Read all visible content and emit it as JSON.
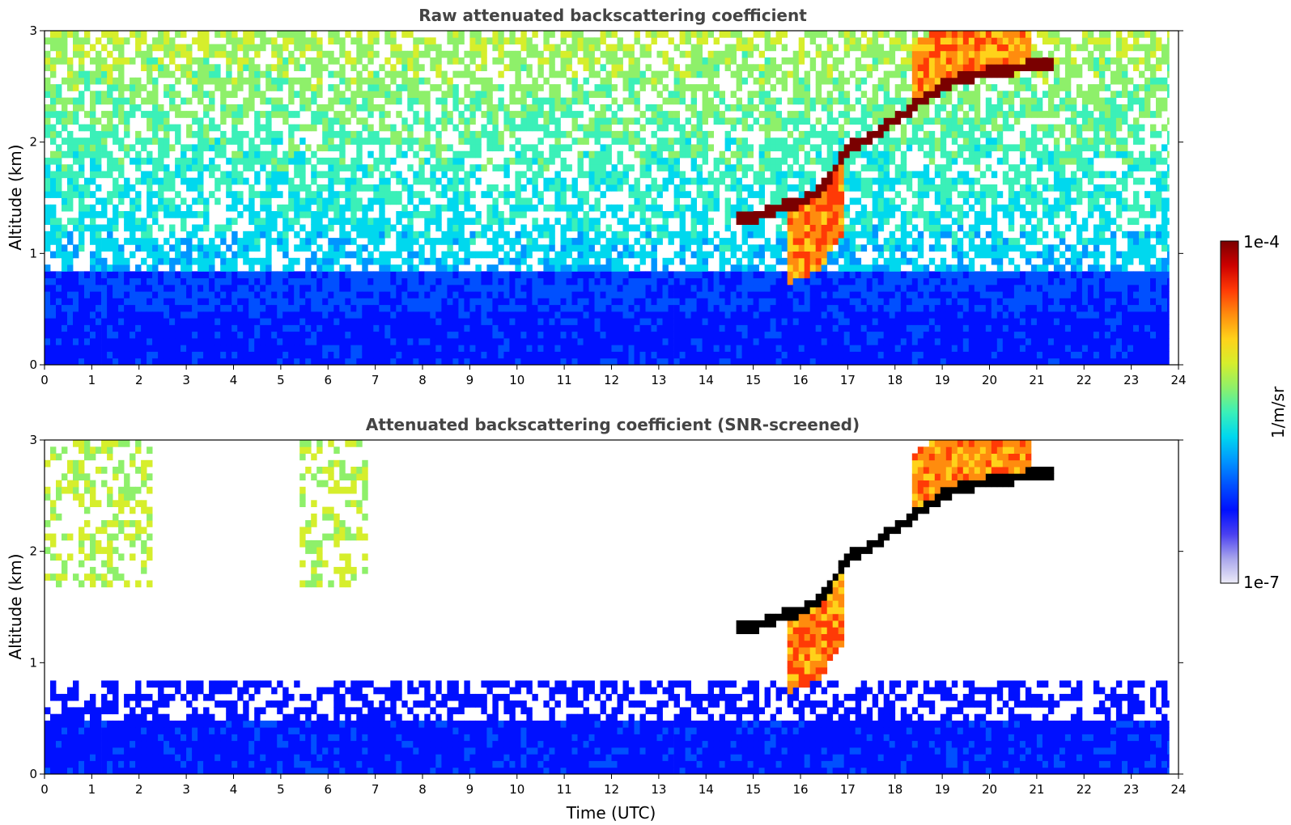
{
  "colorbar": {
    "max_label": "1e-4",
    "min_label": "1e-7",
    "unit_label": "1/m/sr",
    "colors": [
      "#ecebf7",
      "#a9a6ec",
      "#4a40f0",
      "#0010ff",
      "#0050ff",
      "#0095ff",
      "#00d8ee",
      "#3bf0b8",
      "#8ef06a",
      "#d6ee2c",
      "#ffd21a",
      "#ff8c0e",
      "#ff3a06",
      "#cc0000",
      "#7a0000"
    ]
  },
  "chart_data": [
    {
      "type": "heatmap",
      "title": "Raw attenuated backscattering coefficient",
      "xlabel": "",
      "ylabel": "Altitude (km)",
      "xlim": [
        0,
        24
      ],
      "ylim": [
        0,
        3
      ],
      "x_ticks": [
        "0",
        "1",
        "2",
        "3",
        "4",
        "5",
        "6",
        "7",
        "8",
        "9",
        "10",
        "11",
        "12",
        "13",
        "14",
        "15",
        "16",
        "17",
        "18",
        "19",
        "20",
        "21",
        "22",
        "23",
        "24"
      ],
      "y_ticks": [
        "0",
        "1",
        "2",
        "3"
      ],
      "data_end_time": 23.8,
      "cloud_layer": [
        [
          14.6,
          1.3
        ],
        [
          15.0,
          1.33
        ],
        [
          15.5,
          1.4
        ],
        [
          16.0,
          1.47
        ],
        [
          16.4,
          1.55
        ],
        [
          16.7,
          1.75
        ],
        [
          17.0,
          1.95
        ],
        [
          17.5,
          2.05
        ],
        [
          18.0,
          2.2
        ],
        [
          18.5,
          2.35
        ],
        [
          19.0,
          2.5
        ],
        [
          19.5,
          2.58
        ],
        [
          20.0,
          2.63
        ],
        [
          20.5,
          2.66
        ],
        [
          21.0,
          2.7
        ],
        [
          21.3,
          2.72
        ]
      ]
    },
    {
      "type": "heatmap",
      "title": "Attenuated backscattering coefficient (SNR-screened)",
      "xlabel": "Time (UTC)",
      "ylabel": "Altitude (km)",
      "xlim": [
        0,
        24
      ],
      "ylim": [
        0,
        3
      ],
      "x_ticks": [
        "0",
        "1",
        "2",
        "3",
        "4",
        "5",
        "6",
        "7",
        "8",
        "9",
        "10",
        "11",
        "12",
        "13",
        "14",
        "15",
        "16",
        "17",
        "18",
        "19",
        "20",
        "21",
        "22",
        "23",
        "24"
      ],
      "y_ticks": [
        "0",
        "1",
        "2",
        "3"
      ],
      "data_end_time": 23.8,
      "cloud_layer": [
        [
          14.6,
          1.3
        ],
        [
          15.0,
          1.33
        ],
        [
          15.5,
          1.4
        ],
        [
          16.0,
          1.47
        ],
        [
          16.4,
          1.55
        ],
        [
          16.7,
          1.75
        ],
        [
          17.0,
          1.95
        ],
        [
          17.5,
          2.05
        ],
        [
          18.0,
          2.2
        ],
        [
          18.5,
          2.35
        ],
        [
          19.0,
          2.5
        ],
        [
          19.5,
          2.58
        ],
        [
          20.0,
          2.63
        ],
        [
          20.5,
          2.66
        ],
        [
          21.0,
          2.7
        ],
        [
          21.3,
          2.72
        ]
      ]
    }
  ]
}
